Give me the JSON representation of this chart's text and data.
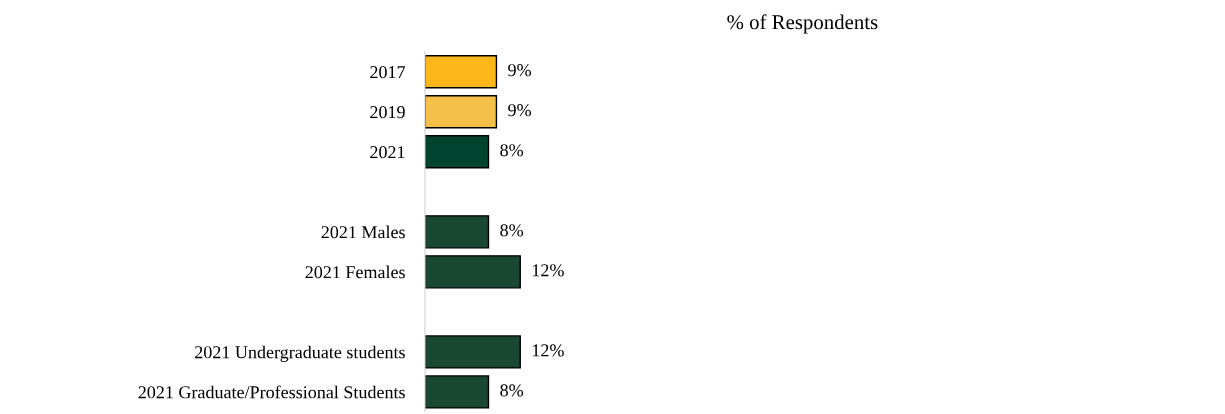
{
  "chart_data": {
    "type": "bar",
    "orientation": "horizontal",
    "title": "% of Respondents",
    "categories": [
      "2017",
      "2019",
      "2021",
      null,
      "2021 Males",
      "2021 Females",
      null,
      "2021 Undergraduate students",
      "2021 Graduate/Professional Students"
    ],
    "values": [
      9,
      9,
      8,
      null,
      8,
      12,
      null,
      12,
      8
    ],
    "value_labels": [
      "9%",
      "9%",
      "8%",
      null,
      "8%",
      "12%",
      null,
      "12%",
      "8%"
    ],
    "colors": [
      "#fdb71a",
      "#f5c04a",
      "#00432f",
      null,
      "#1a4731",
      "#1a4731",
      null,
      "#1a4731",
      "#1a4731"
    ],
    "tick_labels": "y",
    "grid": false,
    "legend": false
  }
}
